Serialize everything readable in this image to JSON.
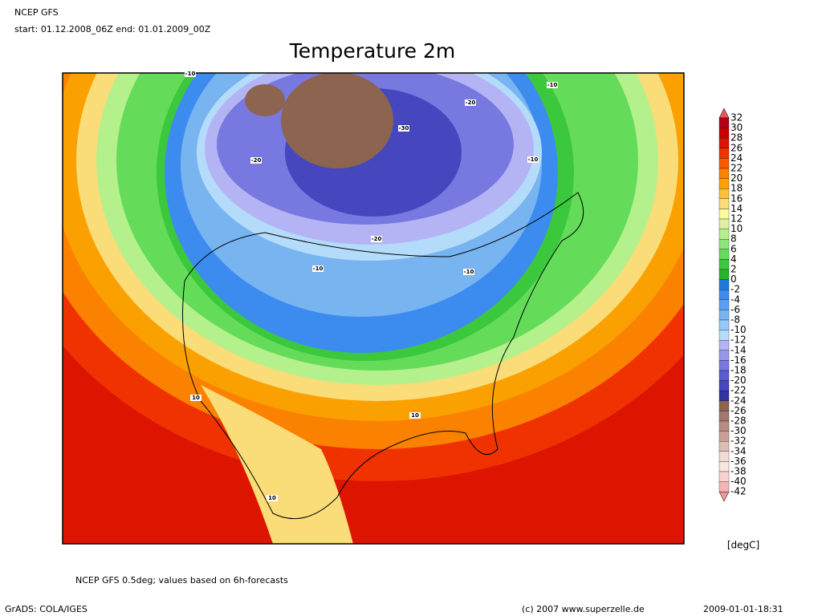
{
  "header": {
    "model": "NCEP GFS",
    "period": "start: 01.12.2008_06Z end: 01.01.2009_00Z"
  },
  "title": "Temperature 2m",
  "contour_labels": [
    "-10",
    "-10",
    "-20",
    "-30",
    "-20",
    "-10",
    "-20",
    "-10",
    "-10",
    "10",
    "10",
    "10"
  ],
  "legend": {
    "levels": [
      32,
      30,
      28,
      26,
      24,
      22,
      20,
      18,
      16,
      14,
      12,
      10,
      8,
      6,
      4,
      2,
      0,
      -2,
      -4,
      -6,
      -8,
      -10,
      -12,
      -14,
      -16,
      -18,
      -20,
      -22,
      -24,
      -26,
      -28,
      -30,
      -32,
      -34,
      -36,
      -38,
      -40,
      -42
    ],
    "colors": [
      "#e05a5a",
      "#b40014",
      "#c80000",
      "#dc1400",
      "#f03200",
      "#fa5a00",
      "#fa8200",
      "#faa000",
      "#fac03c",
      "#fadc78",
      "#fafaa0",
      "#dcf0a0",
      "#b4f08c",
      "#8ce678",
      "#64dc5a",
      "#3cc83c",
      "#28b428",
      "#1e78dc",
      "#3c8cf0",
      "#5aa0f0",
      "#78b4f0",
      "#96c8fa",
      "#b4dcfa",
      "#b4b4f5",
      "#9696eb",
      "#7878e1",
      "#5a5ad2",
      "#4646be",
      "#3232a0",
      "#8c6450",
      "#a0786e",
      "#b48c82",
      "#c8a096",
      "#dcbeb4",
      "#f0dcd2",
      "#fae6dc",
      "#fad2d2",
      "#f5b4b4",
      "#f09696"
    ]
  },
  "unit": "[degC]",
  "note": "NCEP GFS 0.5deg; values based on 6h-forecasts",
  "footer": {
    "software": "GrADS: COLA/IGES",
    "copyright": "(c) 2007 www.superzelle.de",
    "timestamp": "2009-01-01-18:31"
  }
}
